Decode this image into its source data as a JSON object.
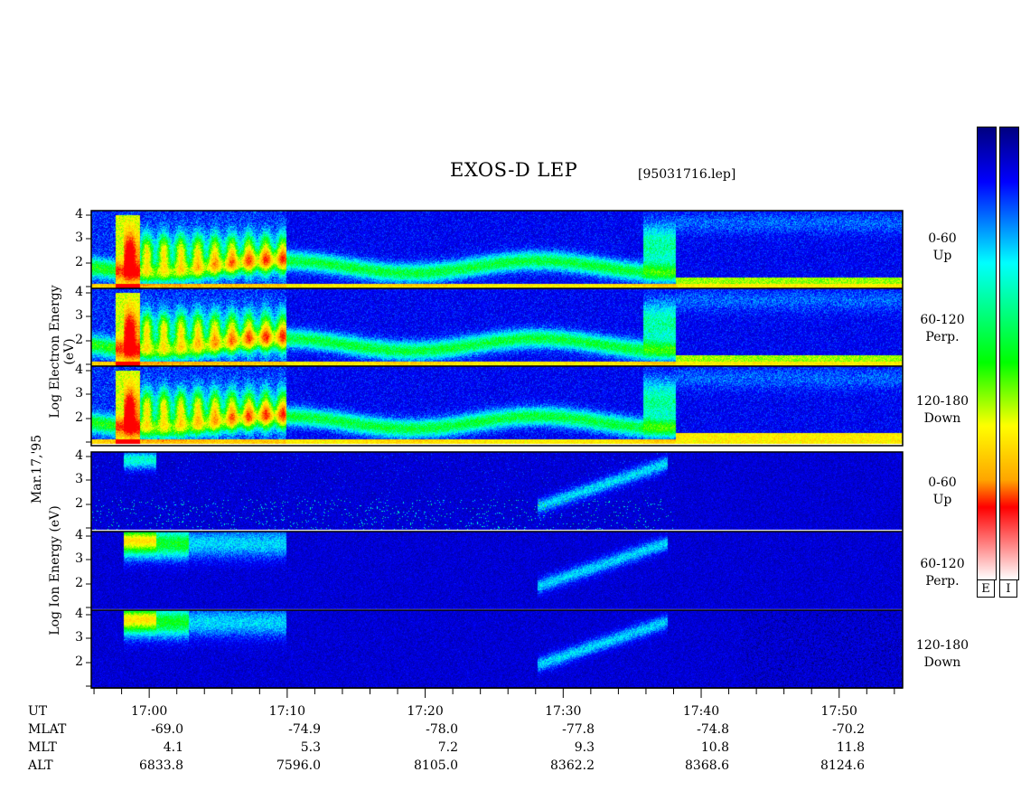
{
  "title": "EXOS-D LEP",
  "file_label": "[95031716.lep]",
  "date_label": "Mar.17,'95",
  "colorbar_labels": [
    "E",
    "I"
  ],
  "chart_data": {
    "type": "heatmap",
    "electron_axis_label": "Log Electron Energy (eV)",
    "ion_axis_label": "Log Ion Energy (eV)",
    "yticks": [
      "4",
      "3",
      "2"
    ],
    "xticks": [
      "17:00",
      "17:10",
      "17:20",
      "17:30",
      "17:40",
      "17:50"
    ],
    "xlim_minutes": [
      16.93,
      17.91
    ],
    "panels": [
      {
        "species": "electron",
        "pitch": "0-60",
        "direction": "Up"
      },
      {
        "species": "electron",
        "pitch": "60-120",
        "direction": "Perp."
      },
      {
        "species": "electron",
        "pitch": "120-180",
        "direction": "Down"
      },
      {
        "species": "ion",
        "pitch": "0-60",
        "direction": "Up"
      },
      {
        "species": "ion",
        "pitch": "60-120",
        "direction": "Perp."
      },
      {
        "species": "ion",
        "pitch": "120-180",
        "direction": "Down"
      }
    ],
    "colorscale": [
      "#ffffff",
      "#ff0000",
      "#ffa500",
      "#ffff00",
      "#00ff00",
      "#00ffff",
      "#0000ff",
      "#000080"
    ]
  },
  "orbit": {
    "rows": [
      {
        "name": "UT",
        "values": [
          "17:00",
          "17:10",
          "17:20",
          "17:30",
          "17:40",
          "17:50"
        ]
      },
      {
        "name": "MLAT",
        "values": [
          "-69.0",
          "-74.9",
          "-78.0",
          "-77.8",
          "-74.8",
          "-70.2"
        ]
      },
      {
        "name": "MLT",
        "values": [
          "4.1",
          "5.3",
          "7.2",
          "9.3",
          "10.8",
          "11.8"
        ]
      },
      {
        "name": "ALT",
        "values": [
          "6833.8",
          "7596.0",
          "8105.0",
          "8362.2",
          "8368.6",
          "8124.6"
        ]
      }
    ]
  }
}
